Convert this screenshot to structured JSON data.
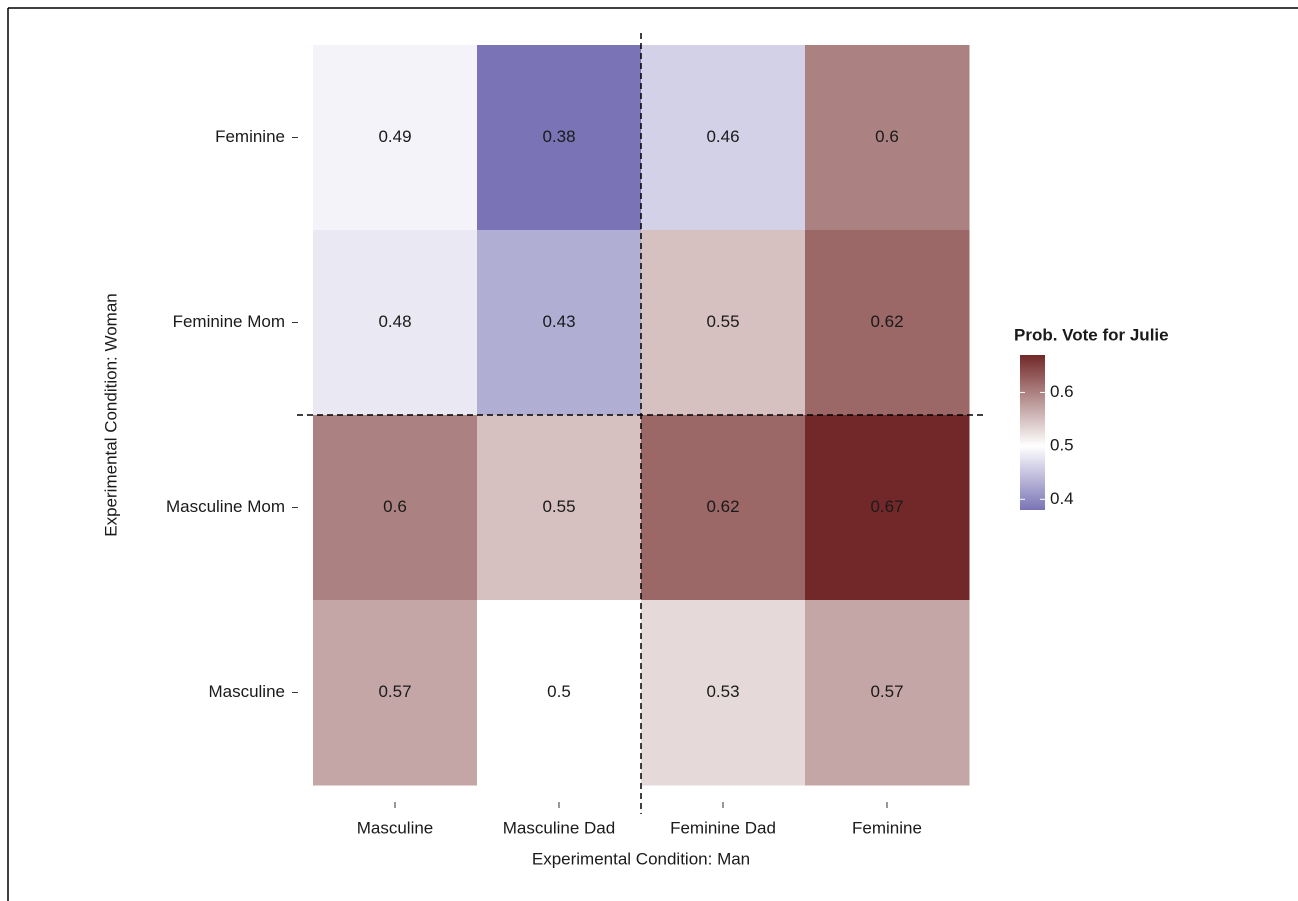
{
  "chart_data": {
    "type": "heatmap",
    "x_label": "Experimental Condition: Man",
    "y_label": "Experimental Condition: Woman",
    "x_categories": [
      "Masculine",
      "Masculine Dad",
      "Feminine Dad",
      "Feminine"
    ],
    "y_categories": [
      "Feminine",
      "Feminine Mom",
      "Masculine Mom",
      "Masculine"
    ],
    "values": [
      [
        0.49,
        0.38,
        0.46,
        0.6
      ],
      [
        0.48,
        0.43,
        0.55,
        0.62
      ],
      [
        0.6,
        0.55,
        0.62,
        0.67
      ],
      [
        0.57,
        0.5,
        0.53,
        0.57
      ]
    ],
    "legend_title": "Prob. Vote for Julie",
    "clim": [
      0.38,
      0.67
    ],
    "colorbar_ticks": [
      0.4,
      0.5,
      0.6
    ],
    "midpoint": 0.5,
    "colors": {
      "low": "#7a74b6",
      "mid": "#ffffff",
      "high": "#722828"
    }
  }
}
